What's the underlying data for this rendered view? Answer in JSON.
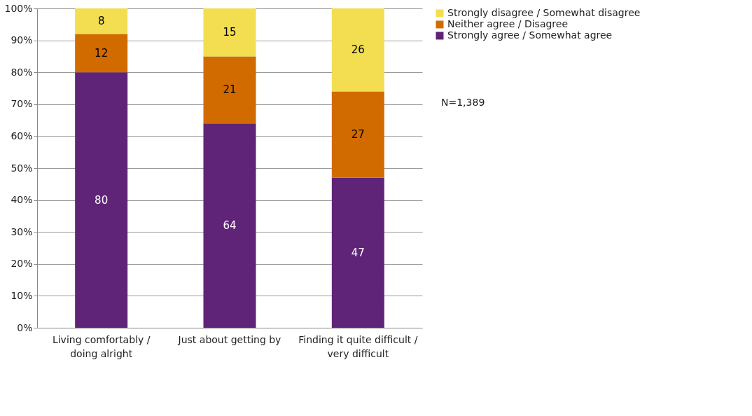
{
  "chart_data": {
    "type": "bar",
    "stacked": true,
    "categories": [
      "Living comfortably / doing alright",
      "Just about getting by",
      "Finding it quite difficult / very difficult"
    ],
    "series": [
      {
        "name": "Strongly agree / Somewhat agree",
        "color": "#5f2478",
        "values": [
          80,
          64,
          47
        ]
      },
      {
        "name": "Neither agree / Disagree",
        "color": "#d16b00",
        "values": [
          12,
          21,
          27
        ]
      },
      {
        "name": "Strongly disagree / Somewhat disagree",
        "color": "#f2de50",
        "values": [
          8,
          15,
          26
        ]
      }
    ],
    "ylim": [
      0,
      100
    ],
    "yticks": [
      {
        "value": 0,
        "label": "0%"
      },
      {
        "value": 10,
        "label": "10%"
      },
      {
        "value": 20,
        "label": "20%"
      },
      {
        "value": 30,
        "label": "30%"
      },
      {
        "value": 40,
        "label": "40%"
      },
      {
        "value": 50,
        "label": "50%"
      },
      {
        "value": 60,
        "label": "60%"
      },
      {
        "value": 70,
        "label": "70%"
      },
      {
        "value": 80,
        "label": "80%"
      },
      {
        "value": 90,
        "label": "90%"
      },
      {
        "value": 100,
        "label": "100%"
      }
    ],
    "grid": "y",
    "legend": "right",
    "data_labels": true,
    "annotations": [
      "N=1,389"
    ]
  }
}
